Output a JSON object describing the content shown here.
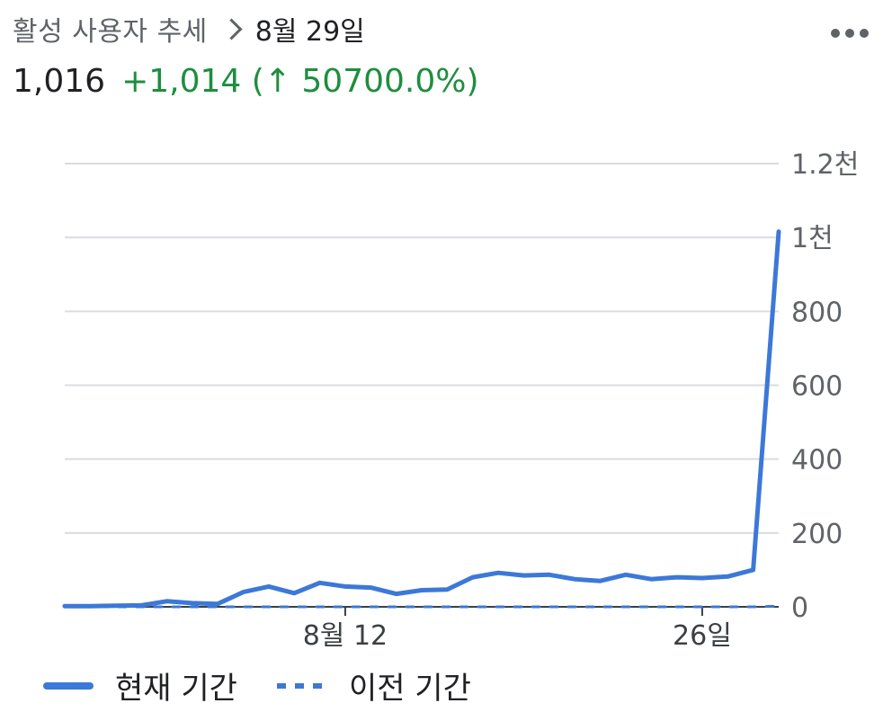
{
  "header": {
    "title": "활성 사용자 추세",
    "date": "8월 29일"
  },
  "summary": {
    "total": "1,016",
    "change": "+1,014 (↑ 50700.0%)"
  },
  "legend": {
    "current": "현재 기간",
    "previous": "이전 기간"
  },
  "colors": {
    "series": "#3c78d8",
    "positive": "#1e8e3e",
    "grid": "#dadce0",
    "text": "#202124"
  },
  "chart_data": {
    "type": "line",
    "x": [
      1,
      2,
      3,
      4,
      5,
      6,
      7,
      8,
      9,
      10,
      11,
      12,
      13,
      14,
      15,
      16,
      17,
      18,
      19,
      20,
      21,
      22,
      23,
      24,
      25,
      26,
      27,
      28,
      29
    ],
    "xticks": [
      {
        "x": 12,
        "label": "8월 12"
      },
      {
        "x": 26,
        "label": "26일"
      }
    ],
    "yticks": [
      {
        "v": 0,
        "label": "0"
      },
      {
        "v": 200,
        "label": "200"
      },
      {
        "v": 400,
        "label": "400"
      },
      {
        "v": 600,
        "label": "600"
      },
      {
        "v": 800,
        "label": "800"
      },
      {
        "v": 1000,
        "label": "1천"
      },
      {
        "v": 1200,
        "label": "1.2천"
      }
    ],
    "ylim": [
      0,
      1200
    ],
    "xlim": [
      1,
      29
    ],
    "grid": true,
    "legend_position": "bottom",
    "series": [
      {
        "name": "현재 기간",
        "style": "solid",
        "values": [
          2,
          2,
          3,
          4,
          15,
          10,
          8,
          40,
          55,
          37,
          65,
          55,
          52,
          35,
          45,
          47,
          80,
          92,
          85,
          87,
          75,
          70,
          87,
          75,
          80,
          78,
          82,
          100,
          1016
        ]
      },
      {
        "name": "이전 기간",
        "style": "dashed",
        "values": [
          0,
          0,
          0,
          0,
          0,
          0,
          0,
          0,
          0,
          0,
          0,
          0,
          0,
          0,
          0,
          0,
          0,
          0,
          0,
          0,
          0,
          0,
          0,
          0,
          0,
          0,
          0,
          0,
          2
        ]
      }
    ]
  }
}
